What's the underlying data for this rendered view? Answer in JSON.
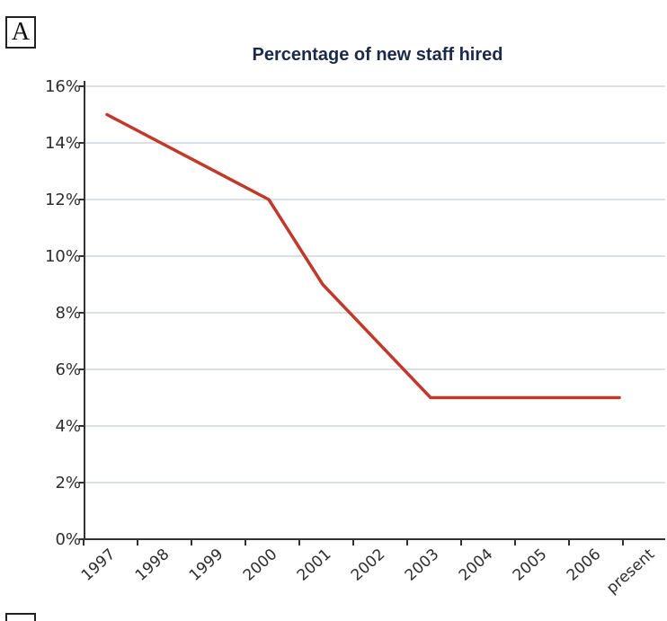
{
  "panel_label": "A",
  "colors": {
    "line": "#c0392b",
    "grid": "#c8ced6",
    "axis": "#333333",
    "title": "#1b2a4a"
  },
  "chart_data": {
    "type": "line",
    "title": "Percentage of new staff hired",
    "xlabel": "",
    "ylabel": "",
    "categories": [
      "1997",
      "1998",
      "1999",
      "2000",
      "2001",
      "2002",
      "2003",
      "2004",
      "2005",
      "2006",
      "present"
    ],
    "ylim": [
      0,
      16
    ],
    "yticks": [
      0,
      2,
      4,
      6,
      8,
      10,
      12,
      14,
      16
    ],
    "ytick_labels": [
      "0%",
      "2%",
      "4%",
      "6%",
      "8%",
      "10%",
      "12%",
      "14%",
      "16%"
    ],
    "grid": true,
    "series": [
      {
        "points": [
          {
            "x": "1997",
            "y": 15
          },
          {
            "x": "2000",
            "y": 12
          },
          {
            "x": "2001",
            "y": 9
          },
          {
            "x": "2003",
            "y": 5
          },
          {
            "x": "present",
            "y": 5
          }
        ]
      }
    ]
  }
}
